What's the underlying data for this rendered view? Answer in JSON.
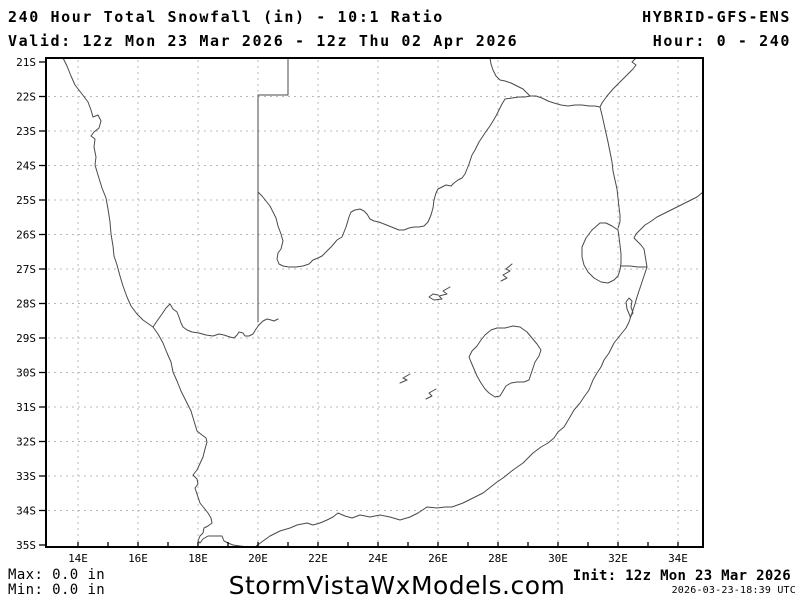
{
  "header": {
    "title": "240 Hour Total Snowfall (in) - 10:1 Ratio",
    "model": "HYBRID-GFS-ENS",
    "valid_range": "Valid: 12z Mon 23 Mar 2026 - 12z Thu 02 Apr 2026",
    "hour_range": "Hour: 0 - 240"
  },
  "map": {
    "lat_labels": [
      "21S",
      "22S",
      "23S",
      "24S",
      "25S",
      "26S",
      "27S",
      "28S",
      "29S",
      "30S",
      "31S",
      "32S",
      "33S",
      "34S",
      "35S"
    ],
    "lon_labels": [
      "14E",
      "16E",
      "18E",
      "20E",
      "22E",
      "24E",
      "26E",
      "28E",
      "30E",
      "32E",
      "34E"
    ],
    "frame_color": "#000000",
    "coast_color": "#4a4a4a",
    "grid_color": "#b8b8b8"
  },
  "footer": {
    "max_label": "Max: 0.0 in",
    "min_label": "Min: 0.0 in",
    "watermark": "StormVistaWxModels.com",
    "init_label": "Init: 12z Mon 23 Mar 2026",
    "timestamp": "2026-03-23-18:39 UTC"
  },
  "chart_data": {
    "type": "map",
    "title": "240 Hour Total Snowfall (in) - 10:1 Ratio",
    "model": "HYBRID-GFS-ENS",
    "lon_range_deg_east": [
      13,
      35
    ],
    "lat_range_deg_south": [
      21,
      35
    ],
    "grid": "dotted, 2 deg lon x 1 deg lat",
    "snowfall_max_in": 0.0,
    "snowfall_min_in": 0.0,
    "filled_contours": "none (no snowfall shown)"
  }
}
